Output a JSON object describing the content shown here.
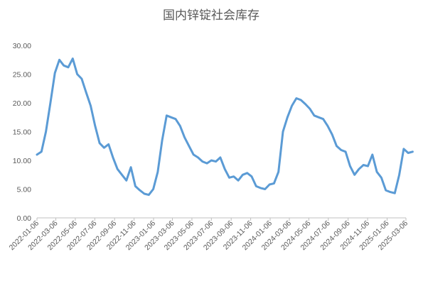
{
  "chart_data": {
    "type": "line",
    "title": "国内锌锭社会库存",
    "xlabel": "",
    "ylabel": "",
    "ylim": [
      0,
      30
    ],
    "yticks": [
      "0.00",
      "5.00",
      "10.00",
      "15.00",
      "20.00",
      "25.00",
      "30.00"
    ],
    "grid": false,
    "legend": "none",
    "line_color": "#5b9bd5",
    "xtick_labels": [
      "2022-01-06",
      "2022-03-06",
      "2022-05-06",
      "2022-07-06",
      "2022-09-06",
      "2022-11-06",
      "2023-01-06",
      "2023-03-06",
      "2023-05-06",
      "2023-07-06",
      "2023-09-06",
      "2023-11-06",
      "2024-01-06",
      "2024-03-06",
      "2024-05-06",
      "2024-07-06",
      "2024-09-06",
      "2024-11-06",
      "2025-01-06",
      "2025-03-06"
    ],
    "x": [
      "2022-01-06",
      "2022-01-20",
      "2022-02-03",
      "2022-02-17",
      "2022-03-03",
      "2022-03-17",
      "2022-03-31",
      "2022-04-14",
      "2022-04-28",
      "2022-05-12",
      "2022-05-26",
      "2022-06-09",
      "2022-06-23",
      "2022-07-07",
      "2022-07-21",
      "2022-08-04",
      "2022-08-18",
      "2022-09-01",
      "2022-09-15",
      "2022-09-29",
      "2022-10-13",
      "2022-10-27",
      "2022-11-10",
      "2022-11-24",
      "2022-12-08",
      "2022-12-22",
      "2023-01-05",
      "2023-01-19",
      "2023-02-02",
      "2023-02-16",
      "2023-03-02",
      "2023-03-16",
      "2023-03-30",
      "2023-04-13",
      "2023-04-27",
      "2023-05-11",
      "2023-05-25",
      "2023-06-08",
      "2023-06-22",
      "2023-07-06",
      "2023-07-20",
      "2023-08-03",
      "2023-08-17",
      "2023-08-31",
      "2023-09-14",
      "2023-09-28",
      "2023-10-12",
      "2023-10-26",
      "2023-11-09",
      "2023-11-23",
      "2023-12-07",
      "2023-12-21",
      "2024-01-04",
      "2024-01-18",
      "2024-02-01",
      "2024-02-15",
      "2024-02-29",
      "2024-03-14",
      "2024-03-28",
      "2024-04-11",
      "2024-04-25",
      "2024-05-09",
      "2024-05-23",
      "2024-06-06",
      "2024-06-20",
      "2024-07-04",
      "2024-07-18",
      "2024-08-01",
      "2024-08-15",
      "2024-08-29",
      "2024-09-12",
      "2024-09-26",
      "2024-10-10",
      "2024-10-24",
      "2024-11-07",
      "2024-11-21",
      "2024-12-05",
      "2024-12-19",
      "2025-01-02",
      "2025-01-16",
      "2025-01-30",
      "2025-02-13",
      "2025-02-27",
      "2025-03-13",
      "2025-03-27"
    ],
    "series": [
      {
        "values": [
          11.0,
          11.5,
          15.0,
          20.0,
          25.2,
          27.5,
          26.5,
          26.2,
          27.7,
          25.0,
          24.2,
          21.8,
          19.5,
          16.0,
          13.0,
          12.2,
          12.8,
          10.5,
          8.5,
          7.5,
          6.5,
          8.8,
          5.5,
          4.8,
          4.2,
          4.0,
          5.0,
          8.0,
          13.5,
          17.8,
          17.5,
          17.2,
          16.0,
          14.0,
          12.5,
          11.0,
          10.5,
          9.8,
          9.5,
          10.0,
          9.8,
          10.5,
          8.5,
          7.0,
          7.2,
          6.5,
          7.5,
          7.8,
          7.2,
          5.5,
          5.2,
          5.0,
          5.8,
          6.0,
          8.0,
          15.0,
          17.5,
          19.5,
          20.8,
          20.5,
          19.8,
          19.0,
          17.8,
          17.5,
          17.2,
          16.0,
          14.5,
          12.5,
          11.8,
          11.5,
          9.0,
          7.5,
          8.5,
          9.2,
          9.0,
          11.0,
          8.0,
          7.0,
          4.8,
          4.5,
          4.3,
          7.5,
          12.0,
          11.3,
          11.5
        ]
      }
    ]
  }
}
